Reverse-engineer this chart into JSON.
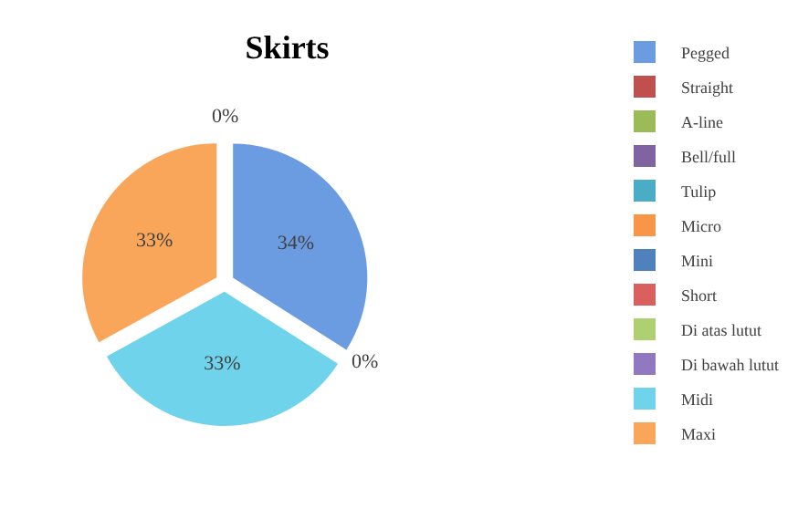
{
  "chart_data": {
    "type": "pie",
    "title": "Skirts",
    "categories": [
      "Pegged",
      "Straight",
      "A-line",
      "Bell/full",
      "Tulip",
      "Micro",
      "Mini",
      "Short",
      "Di atas lutut",
      "Di bawah lutut",
      "Midi",
      "Maxi"
    ],
    "values": [
      34,
      0,
      0,
      0,
      0,
      0,
      0,
      0,
      0,
      0,
      33,
      33
    ],
    "value_labels": [
      "34%",
      "0%",
      null,
      null,
      null,
      null,
      null,
      null,
      null,
      null,
      "33%",
      "33%"
    ],
    "annotations": [
      "0%"
    ],
    "colors": [
      "#6b9be0",
      "#c0504d",
      "#9bbb59",
      "#8064a2",
      "#4bacc6",
      "#f79646",
      "#4f81bd",
      "#d9605c",
      "#aed070",
      "#9178c0",
      "#6fd3ec",
      "#f9a65a"
    ],
    "legend": "right"
  }
}
